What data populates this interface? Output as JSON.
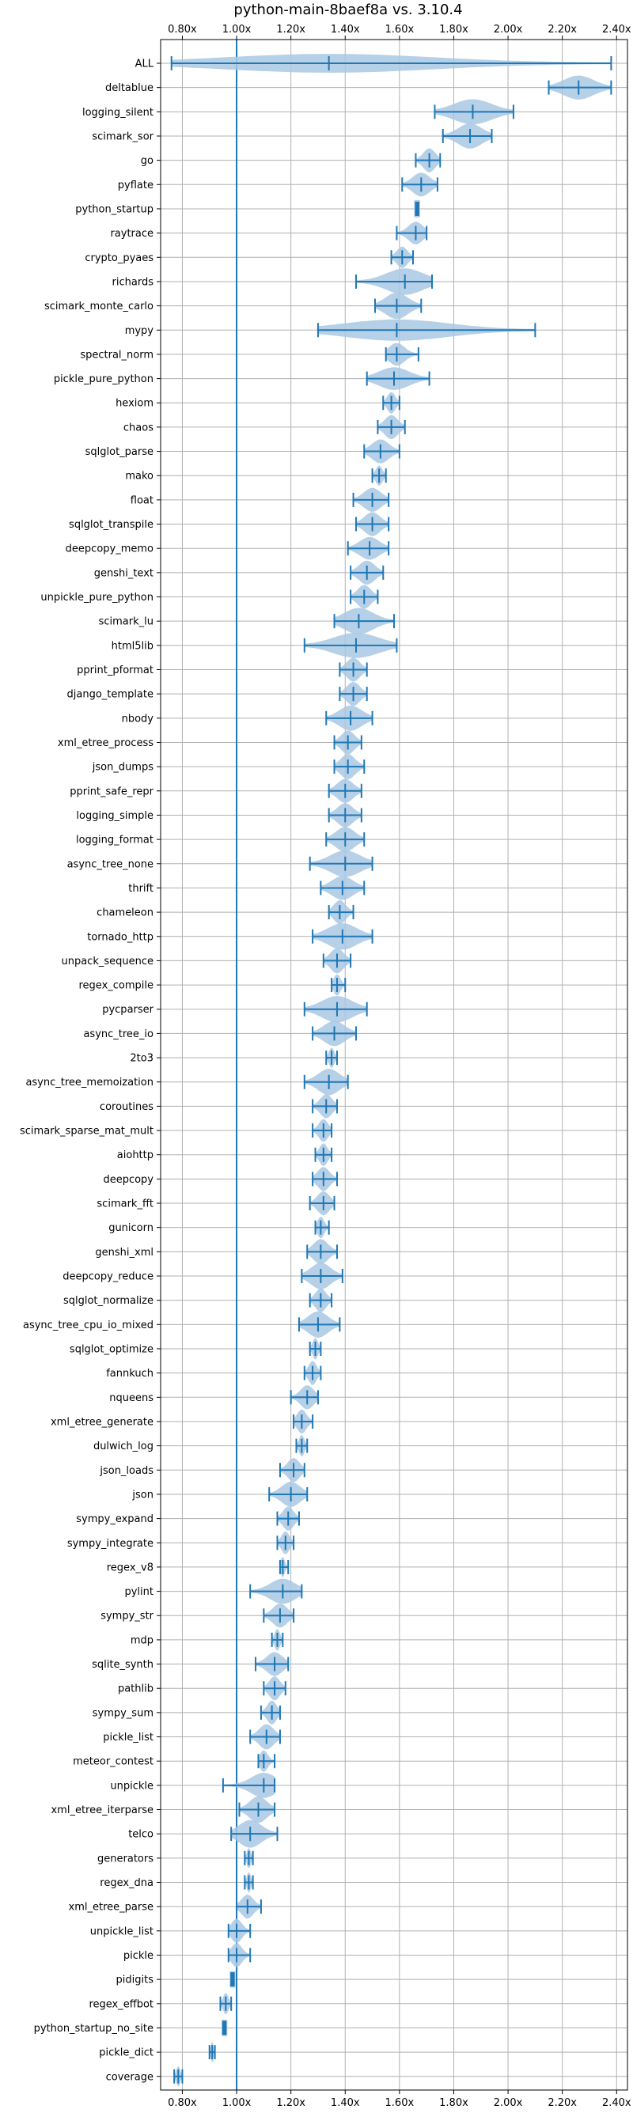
{
  "chart_data": {
    "type": "violin",
    "title": "python-main-8baef8a vs. 3.10.4",
    "xlabel": "",
    "ylabel": "",
    "x_ticks": [
      "0.80x",
      "1.00x",
      "1.20x",
      "1.40x",
      "1.60x",
      "1.80x",
      "2.00x",
      "2.20x",
      "2.40x"
    ],
    "x_tick_values": [
      0.8,
      1.0,
      1.2,
      1.4,
      1.6,
      1.8,
      2.0,
      2.2,
      2.4
    ],
    "xlim": [
      0.72,
      2.44
    ],
    "reference_line": 1.0,
    "grid": true,
    "colors": {
      "violin_fill": "#a9c8e4",
      "line": "#1f77b4",
      "grid": "#b0b0b0"
    },
    "benchmarks": [
      {
        "name": "ALL",
        "min": 0.76,
        "max": 2.38,
        "median": 1.34,
        "mean": 1.34,
        "width": 0.3
      },
      {
        "name": "deltablue",
        "min": 2.15,
        "max": 2.38,
        "median": 2.26,
        "mean": 2.26,
        "width": 0.38
      },
      {
        "name": "logging_silent",
        "min": 1.73,
        "max": 2.02,
        "median": 1.87,
        "mean": 1.87,
        "width": 0.4
      },
      {
        "name": "scimark_sor",
        "min": 1.76,
        "max": 1.94,
        "median": 1.86,
        "mean": 1.86,
        "width": 0.4
      },
      {
        "name": "go",
        "min": 1.66,
        "max": 1.75,
        "median": 1.71,
        "mean": 1.71,
        "width": 0.38
      },
      {
        "name": "pyflate",
        "min": 1.61,
        "max": 1.74,
        "median": 1.68,
        "mean": 1.68,
        "width": 0.38
      },
      {
        "name": "python_startup",
        "min": 1.66,
        "max": 1.67,
        "median": 1.665,
        "mean": 1.665,
        "width": 0.3
      },
      {
        "name": "raytrace",
        "min": 1.59,
        "max": 1.7,
        "median": 1.66,
        "mean": 1.66,
        "width": 0.36
      },
      {
        "name": "crypto_pyaes",
        "min": 1.57,
        "max": 1.65,
        "median": 1.61,
        "mean": 1.61,
        "width": 0.34
      },
      {
        "name": "richards",
        "min": 1.44,
        "max": 1.72,
        "median": 1.62,
        "mean": 1.6,
        "width": 0.42
      },
      {
        "name": "scimark_monte_carlo",
        "min": 1.51,
        "max": 1.68,
        "median": 1.59,
        "mean": 1.59,
        "width": 0.42
      },
      {
        "name": "mypy",
        "min": 1.3,
        "max": 2.1,
        "median": 1.59,
        "mean": 1.59,
        "width": 0.34
      },
      {
        "name": "spectral_norm",
        "min": 1.55,
        "max": 1.67,
        "median": 1.59,
        "mean": 1.59,
        "width": 0.36
      },
      {
        "name": "pickle_pure_python",
        "min": 1.48,
        "max": 1.71,
        "median": 1.58,
        "mean": 1.58,
        "width": 0.36
      },
      {
        "name": "hexiom",
        "min": 1.54,
        "max": 1.6,
        "median": 1.57,
        "mean": 1.57,
        "width": 0.34
      },
      {
        "name": "chaos",
        "min": 1.52,
        "max": 1.62,
        "median": 1.57,
        "mean": 1.57,
        "width": 0.38
      },
      {
        "name": "sqlglot_parse",
        "min": 1.47,
        "max": 1.6,
        "median": 1.53,
        "mean": 1.53,
        "width": 0.38
      },
      {
        "name": "mako",
        "min": 1.5,
        "max": 1.55,
        "median": 1.525,
        "mean": 1.525,
        "width": 0.32
      },
      {
        "name": "float",
        "min": 1.43,
        "max": 1.56,
        "median": 1.5,
        "mean": 1.5,
        "width": 0.38
      },
      {
        "name": "sqlglot_transpile",
        "min": 1.44,
        "max": 1.56,
        "median": 1.5,
        "mean": 1.5,
        "width": 0.38
      },
      {
        "name": "deepcopy_memo",
        "min": 1.41,
        "max": 1.56,
        "median": 1.49,
        "mean": 1.49,
        "width": 0.36
      },
      {
        "name": "genshi_text",
        "min": 1.42,
        "max": 1.54,
        "median": 1.48,
        "mean": 1.48,
        "width": 0.38
      },
      {
        "name": "unpickle_pure_python",
        "min": 1.42,
        "max": 1.52,
        "median": 1.47,
        "mean": 1.47,
        "width": 0.38
      },
      {
        "name": "scimark_lu",
        "min": 1.36,
        "max": 1.58,
        "median": 1.45,
        "mean": 1.45,
        "width": 0.42
      },
      {
        "name": "html5lib",
        "min": 1.25,
        "max": 1.59,
        "median": 1.44,
        "mean": 1.44,
        "width": 0.4
      },
      {
        "name": "pprint_pformat",
        "min": 1.38,
        "max": 1.48,
        "median": 1.43,
        "mean": 1.43,
        "width": 0.38
      },
      {
        "name": "django_template",
        "min": 1.38,
        "max": 1.48,
        "median": 1.43,
        "mean": 1.43,
        "width": 0.38
      },
      {
        "name": "nbody",
        "min": 1.33,
        "max": 1.5,
        "median": 1.42,
        "mean": 1.42,
        "width": 0.4
      },
      {
        "name": "xml_etree_process",
        "min": 1.36,
        "max": 1.46,
        "median": 1.41,
        "mean": 1.41,
        "width": 0.38
      },
      {
        "name": "json_dumps",
        "min": 1.36,
        "max": 1.47,
        "median": 1.41,
        "mean": 1.41,
        "width": 0.4
      },
      {
        "name": "pprint_safe_repr",
        "min": 1.34,
        "max": 1.46,
        "median": 1.4,
        "mean": 1.4,
        "width": 0.38
      },
      {
        "name": "logging_simple",
        "min": 1.34,
        "max": 1.46,
        "median": 1.4,
        "mean": 1.4,
        "width": 0.38
      },
      {
        "name": "logging_format",
        "min": 1.33,
        "max": 1.47,
        "median": 1.4,
        "mean": 1.4,
        "width": 0.4
      },
      {
        "name": "async_tree_none",
        "min": 1.27,
        "max": 1.5,
        "median": 1.4,
        "mean": 1.4,
        "width": 0.42
      },
      {
        "name": "thrift",
        "min": 1.31,
        "max": 1.47,
        "median": 1.39,
        "mean": 1.39,
        "width": 0.38
      },
      {
        "name": "chameleon",
        "min": 1.34,
        "max": 1.43,
        "median": 1.38,
        "mean": 1.38,
        "width": 0.38
      },
      {
        "name": "tornado_http",
        "min": 1.28,
        "max": 1.5,
        "median": 1.39,
        "mean": 1.39,
        "width": 0.42
      },
      {
        "name": "unpack_sequence",
        "min": 1.32,
        "max": 1.42,
        "median": 1.37,
        "mean": 1.37,
        "width": 0.4
      },
      {
        "name": "regex_compile",
        "min": 1.35,
        "max": 1.4,
        "median": 1.37,
        "mean": 1.37,
        "width": 0.34
      },
      {
        "name": "pycparser",
        "min": 1.25,
        "max": 1.48,
        "median": 1.37,
        "mean": 1.37,
        "width": 0.42
      },
      {
        "name": "async_tree_io",
        "min": 1.28,
        "max": 1.44,
        "median": 1.36,
        "mean": 1.36,
        "width": 0.4
      },
      {
        "name": "2to3",
        "min": 1.33,
        "max": 1.37,
        "median": 1.35,
        "mean": 1.35,
        "width": 0.32
      },
      {
        "name": "async_tree_memoization",
        "min": 1.25,
        "max": 1.41,
        "median": 1.34,
        "mean": 1.34,
        "width": 0.42
      },
      {
        "name": "coroutines",
        "min": 1.28,
        "max": 1.37,
        "median": 1.33,
        "mean": 1.33,
        "width": 0.38
      },
      {
        "name": "scimark_sparse_mat_mult",
        "min": 1.28,
        "max": 1.35,
        "median": 1.32,
        "mean": 1.32,
        "width": 0.36
      },
      {
        "name": "aiohttp",
        "min": 1.29,
        "max": 1.35,
        "median": 1.32,
        "mean": 1.32,
        "width": 0.36
      },
      {
        "name": "deepcopy",
        "min": 1.28,
        "max": 1.37,
        "median": 1.32,
        "mean": 1.32,
        "width": 0.38
      },
      {
        "name": "scimark_fft",
        "min": 1.27,
        "max": 1.36,
        "median": 1.32,
        "mean": 1.32,
        "width": 0.38
      },
      {
        "name": "gunicorn",
        "min": 1.29,
        "max": 1.34,
        "median": 1.31,
        "mean": 1.31,
        "width": 0.34
      },
      {
        "name": "genshi_xml",
        "min": 1.26,
        "max": 1.37,
        "median": 1.31,
        "mean": 1.31,
        "width": 0.4
      },
      {
        "name": "deepcopy_reduce",
        "min": 1.24,
        "max": 1.39,
        "median": 1.31,
        "mean": 1.31,
        "width": 0.42
      },
      {
        "name": "sqlglot_normalize",
        "min": 1.27,
        "max": 1.35,
        "median": 1.31,
        "mean": 1.31,
        "width": 0.38
      },
      {
        "name": "async_tree_cpu_io_mixed",
        "min": 1.23,
        "max": 1.38,
        "median": 1.3,
        "mean": 1.3,
        "width": 0.42
      },
      {
        "name": "sqlglot_optimize",
        "min": 1.27,
        "max": 1.31,
        "median": 1.29,
        "mean": 1.29,
        "width": 0.34
      },
      {
        "name": "fannkuch",
        "min": 1.25,
        "max": 1.31,
        "median": 1.28,
        "mean": 1.28,
        "width": 0.38
      },
      {
        "name": "nqueens",
        "min": 1.2,
        "max": 1.3,
        "median": 1.26,
        "mean": 1.26,
        "width": 0.38
      },
      {
        "name": "xml_etree_generate",
        "min": 1.21,
        "max": 1.28,
        "median": 1.24,
        "mean": 1.24,
        "width": 0.38
      },
      {
        "name": "dulwich_log",
        "min": 1.22,
        "max": 1.26,
        "median": 1.24,
        "mean": 1.24,
        "width": 0.34
      },
      {
        "name": "json_loads",
        "min": 1.16,
        "max": 1.25,
        "median": 1.21,
        "mean": 1.21,
        "width": 0.38
      },
      {
        "name": "json",
        "min": 1.12,
        "max": 1.26,
        "median": 1.2,
        "mean": 1.2,
        "width": 0.4
      },
      {
        "name": "sympy_expand",
        "min": 1.15,
        "max": 1.23,
        "median": 1.19,
        "mean": 1.19,
        "width": 0.38
      },
      {
        "name": "sympy_integrate",
        "min": 1.15,
        "max": 1.21,
        "median": 1.18,
        "mean": 1.18,
        "width": 0.36
      },
      {
        "name": "regex_v8",
        "min": 1.16,
        "max": 1.19,
        "median": 1.17,
        "mean": 1.17,
        "width": 0.32
      },
      {
        "name": "pylint",
        "min": 1.05,
        "max": 1.24,
        "median": 1.17,
        "mean": 1.16,
        "width": 0.4
      },
      {
        "name": "sympy_str",
        "min": 1.1,
        "max": 1.21,
        "median": 1.16,
        "mean": 1.16,
        "width": 0.38
      },
      {
        "name": "mdp",
        "min": 1.13,
        "max": 1.17,
        "median": 1.15,
        "mean": 1.15,
        "width": 0.34
      },
      {
        "name": "sqlite_synth",
        "min": 1.07,
        "max": 1.19,
        "median": 1.14,
        "mean": 1.14,
        "width": 0.38
      },
      {
        "name": "pathlib",
        "min": 1.1,
        "max": 1.18,
        "median": 1.14,
        "mean": 1.14,
        "width": 0.38
      },
      {
        "name": "sympy_sum",
        "min": 1.09,
        "max": 1.16,
        "median": 1.13,
        "mean": 1.13,
        "width": 0.38
      },
      {
        "name": "pickle_list",
        "min": 1.05,
        "max": 1.16,
        "median": 1.11,
        "mean": 1.11,
        "width": 0.4
      },
      {
        "name": "meteor_contest",
        "min": 1.08,
        "max": 1.14,
        "median": 1.1,
        "mean": 1.1,
        "width": 0.34
      },
      {
        "name": "unpickle",
        "min": 0.95,
        "max": 1.14,
        "median": 1.1,
        "mean": 1.1,
        "width": 0.4
      },
      {
        "name": "xml_etree_iterparse",
        "min": 1.01,
        "max": 1.14,
        "median": 1.08,
        "mean": 1.08,
        "width": 0.42
      },
      {
        "name": "telco",
        "min": 0.98,
        "max": 1.15,
        "median": 1.05,
        "mean": 1.05,
        "width": 0.44
      },
      {
        "name": "generators",
        "min": 1.03,
        "max": 1.06,
        "median": 1.045,
        "mean": 1.045,
        "width": 0.32
      },
      {
        "name": "regex_dna",
        "min": 1.03,
        "max": 1.06,
        "median": 1.045,
        "mean": 1.045,
        "width": 0.32
      },
      {
        "name": "xml_etree_parse",
        "min": 1.0,
        "max": 1.09,
        "median": 1.04,
        "mean": 1.04,
        "width": 0.38
      },
      {
        "name": "unpickle_list",
        "min": 0.97,
        "max": 1.05,
        "median": 1.0,
        "mean": 1.0,
        "width": 0.38
      },
      {
        "name": "pickle",
        "min": 0.97,
        "max": 1.05,
        "median": 1.0,
        "mean": 1.0,
        "width": 0.38
      },
      {
        "name": "pidigits",
        "min": 0.98,
        "max": 0.99,
        "median": 0.985,
        "mean": 0.985,
        "width": 0.28
      },
      {
        "name": "regex_effbot",
        "min": 0.94,
        "max": 0.98,
        "median": 0.96,
        "mean": 0.96,
        "width": 0.34
      },
      {
        "name": "python_startup_no_site",
        "min": 0.95,
        "max": 0.96,
        "median": 0.955,
        "mean": 0.955,
        "width": 0.28
      },
      {
        "name": "pickle_dict",
        "min": 0.9,
        "max": 0.92,
        "median": 0.91,
        "mean": 0.91,
        "width": 0.32
      },
      {
        "name": "coverage",
        "min": 0.77,
        "max": 0.8,
        "median": 0.785,
        "mean": 0.785,
        "width": 0.32
      }
    ]
  }
}
